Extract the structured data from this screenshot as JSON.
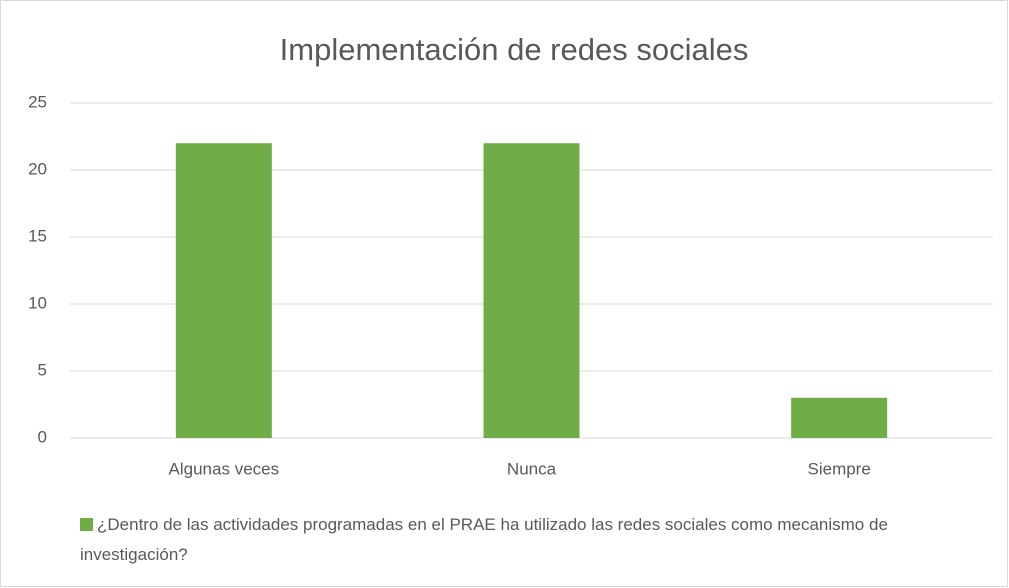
{
  "chart_data": {
    "type": "bar",
    "title": "Implementación de redes sociales",
    "categories": [
      "Algunas veces",
      "Nunca",
      "Siempre"
    ],
    "series": [
      {
        "name": "¿Dentro de las actividades programadas en el PRAE ha utilizado las redes sociales como mecanismo de investigación?",
        "color": "#70ad47",
        "values": [
          22,
          22,
          3
        ]
      }
    ],
    "ylim": [
      0,
      25
    ],
    "yticks": [
      0,
      5,
      10,
      15,
      20,
      25
    ],
    "grid": true,
    "legend": "bottom"
  }
}
